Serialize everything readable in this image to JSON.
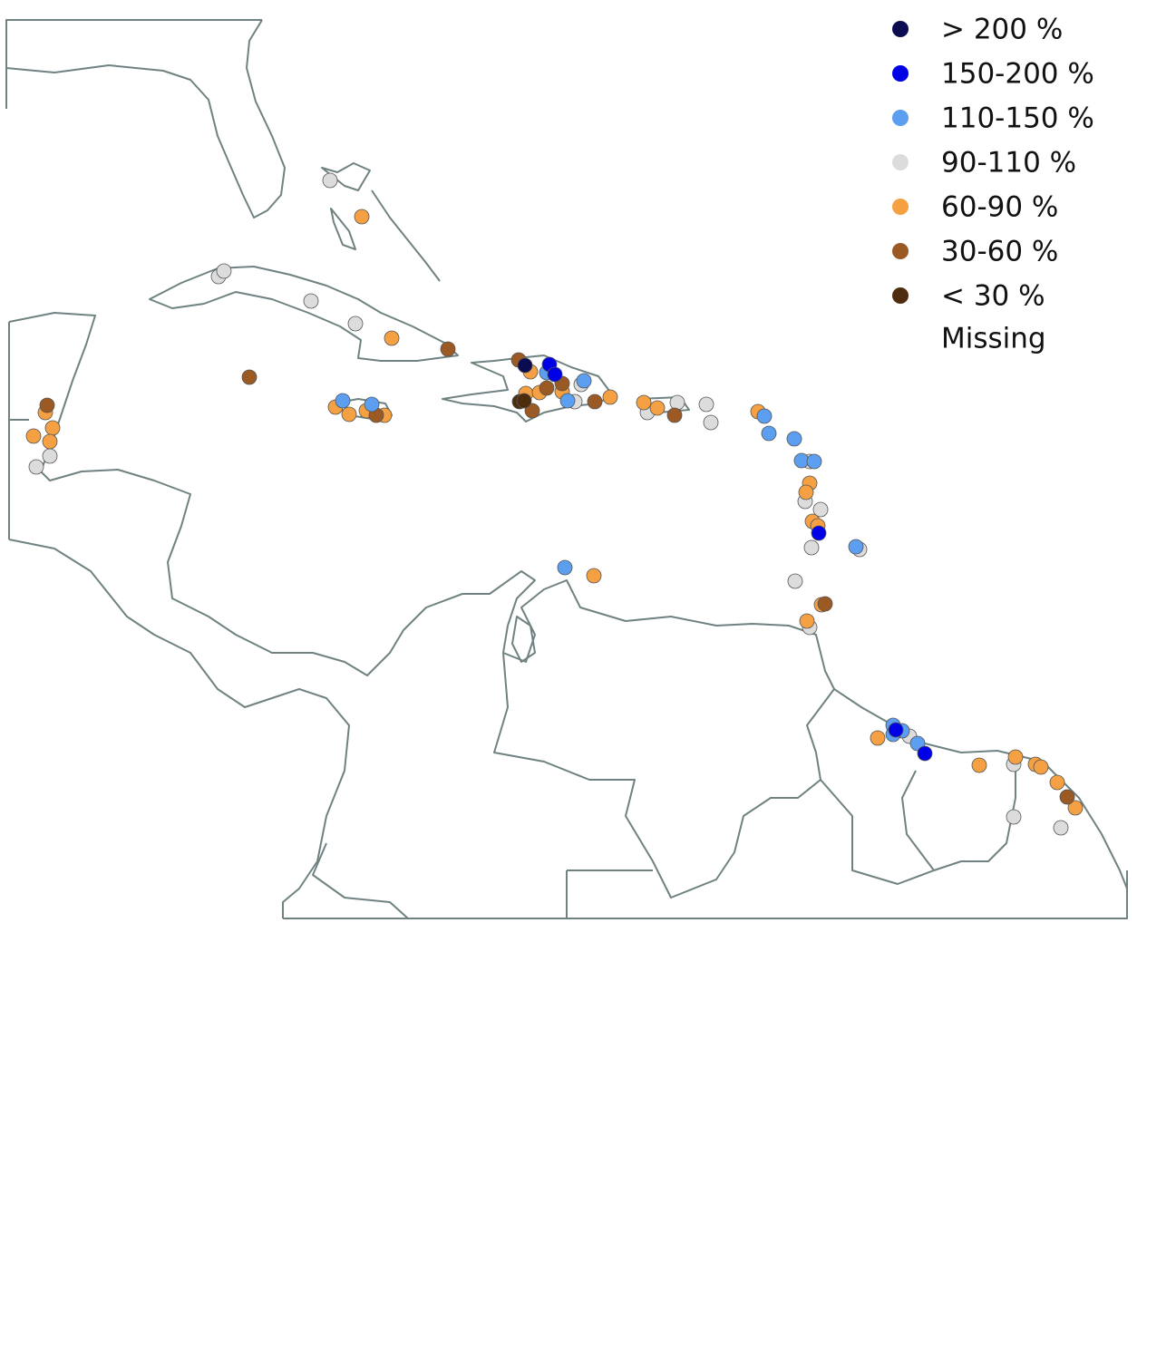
{
  "legend": {
    "items": [
      {
        "label": "> 200 %",
        "color": "#0b0b52"
      },
      {
        "label": "150-200 %",
        "color": "#0000e6"
      },
      {
        "label": "110-150 %",
        "color": "#5c9ff0"
      },
      {
        "label": "90-110 %",
        "color": "#dcdcdc"
      },
      {
        "label": "60-90 %",
        "color": "#f5a042"
      },
      {
        "label": "30-60 %",
        "color": "#9b5a24"
      },
      {
        "label": "< 30  %",
        "color": "#4e2d0f"
      }
    ],
    "missing": "Missing"
  }
}
